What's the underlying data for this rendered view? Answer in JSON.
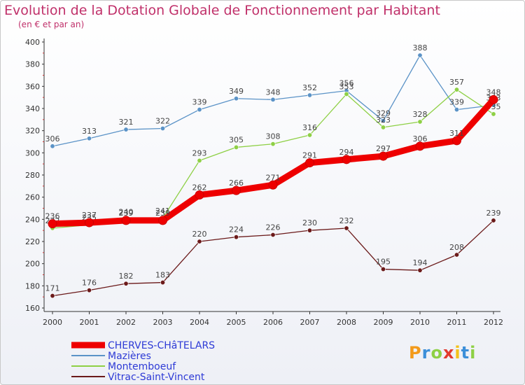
{
  "title": "Evolution de la Dotation Globale de Fonctionnement par Habitant",
  "subtitle": "(en € et par an)",
  "logo": "Proxiti",
  "chart_data": {
    "type": "line",
    "x": [
      "2000",
      "2001",
      "2002",
      "2003",
      "2004",
      "2005",
      "2006",
      "2007",
      "2008",
      "2009",
      "2010",
      "2011",
      "2012"
    ],
    "ylim": [
      160,
      400
    ],
    "yticks": [
      160,
      180,
      200,
      220,
      240,
      260,
      280,
      300,
      320,
      340,
      360,
      380,
      400
    ],
    "grid": false,
    "legend_position": "bottom-left",
    "series": [
      {
        "name": "Mazières",
        "color": "#5b93c7",
        "values": [
          306,
          313,
          321,
          322,
          339,
          349,
          348,
          352,
          356,
          329,
          388,
          339,
          343
        ]
      },
      {
        "name": "Montemboeuf",
        "color": "#8ed045",
        "values": [
          232,
          235,
          240,
          241,
          293,
          305,
          308,
          316,
          353,
          323,
          328,
          357,
          335
        ]
      },
      {
        "name": "Vitrac-Saint-Vincent",
        "color": "#6b1a1a",
        "values": [
          171,
          176,
          182,
          183,
          220,
          224,
          226,
          230,
          232,
          195,
          194,
          208,
          239
        ]
      },
      {
        "name": "CHERVES-CHâTELARS",
        "color": "#ee0000",
        "values": [
          236,
          237,
          239,
          239,
          262,
          266,
          271,
          291,
          294,
          297,
          306,
          311,
          348
        ]
      }
    ]
  }
}
